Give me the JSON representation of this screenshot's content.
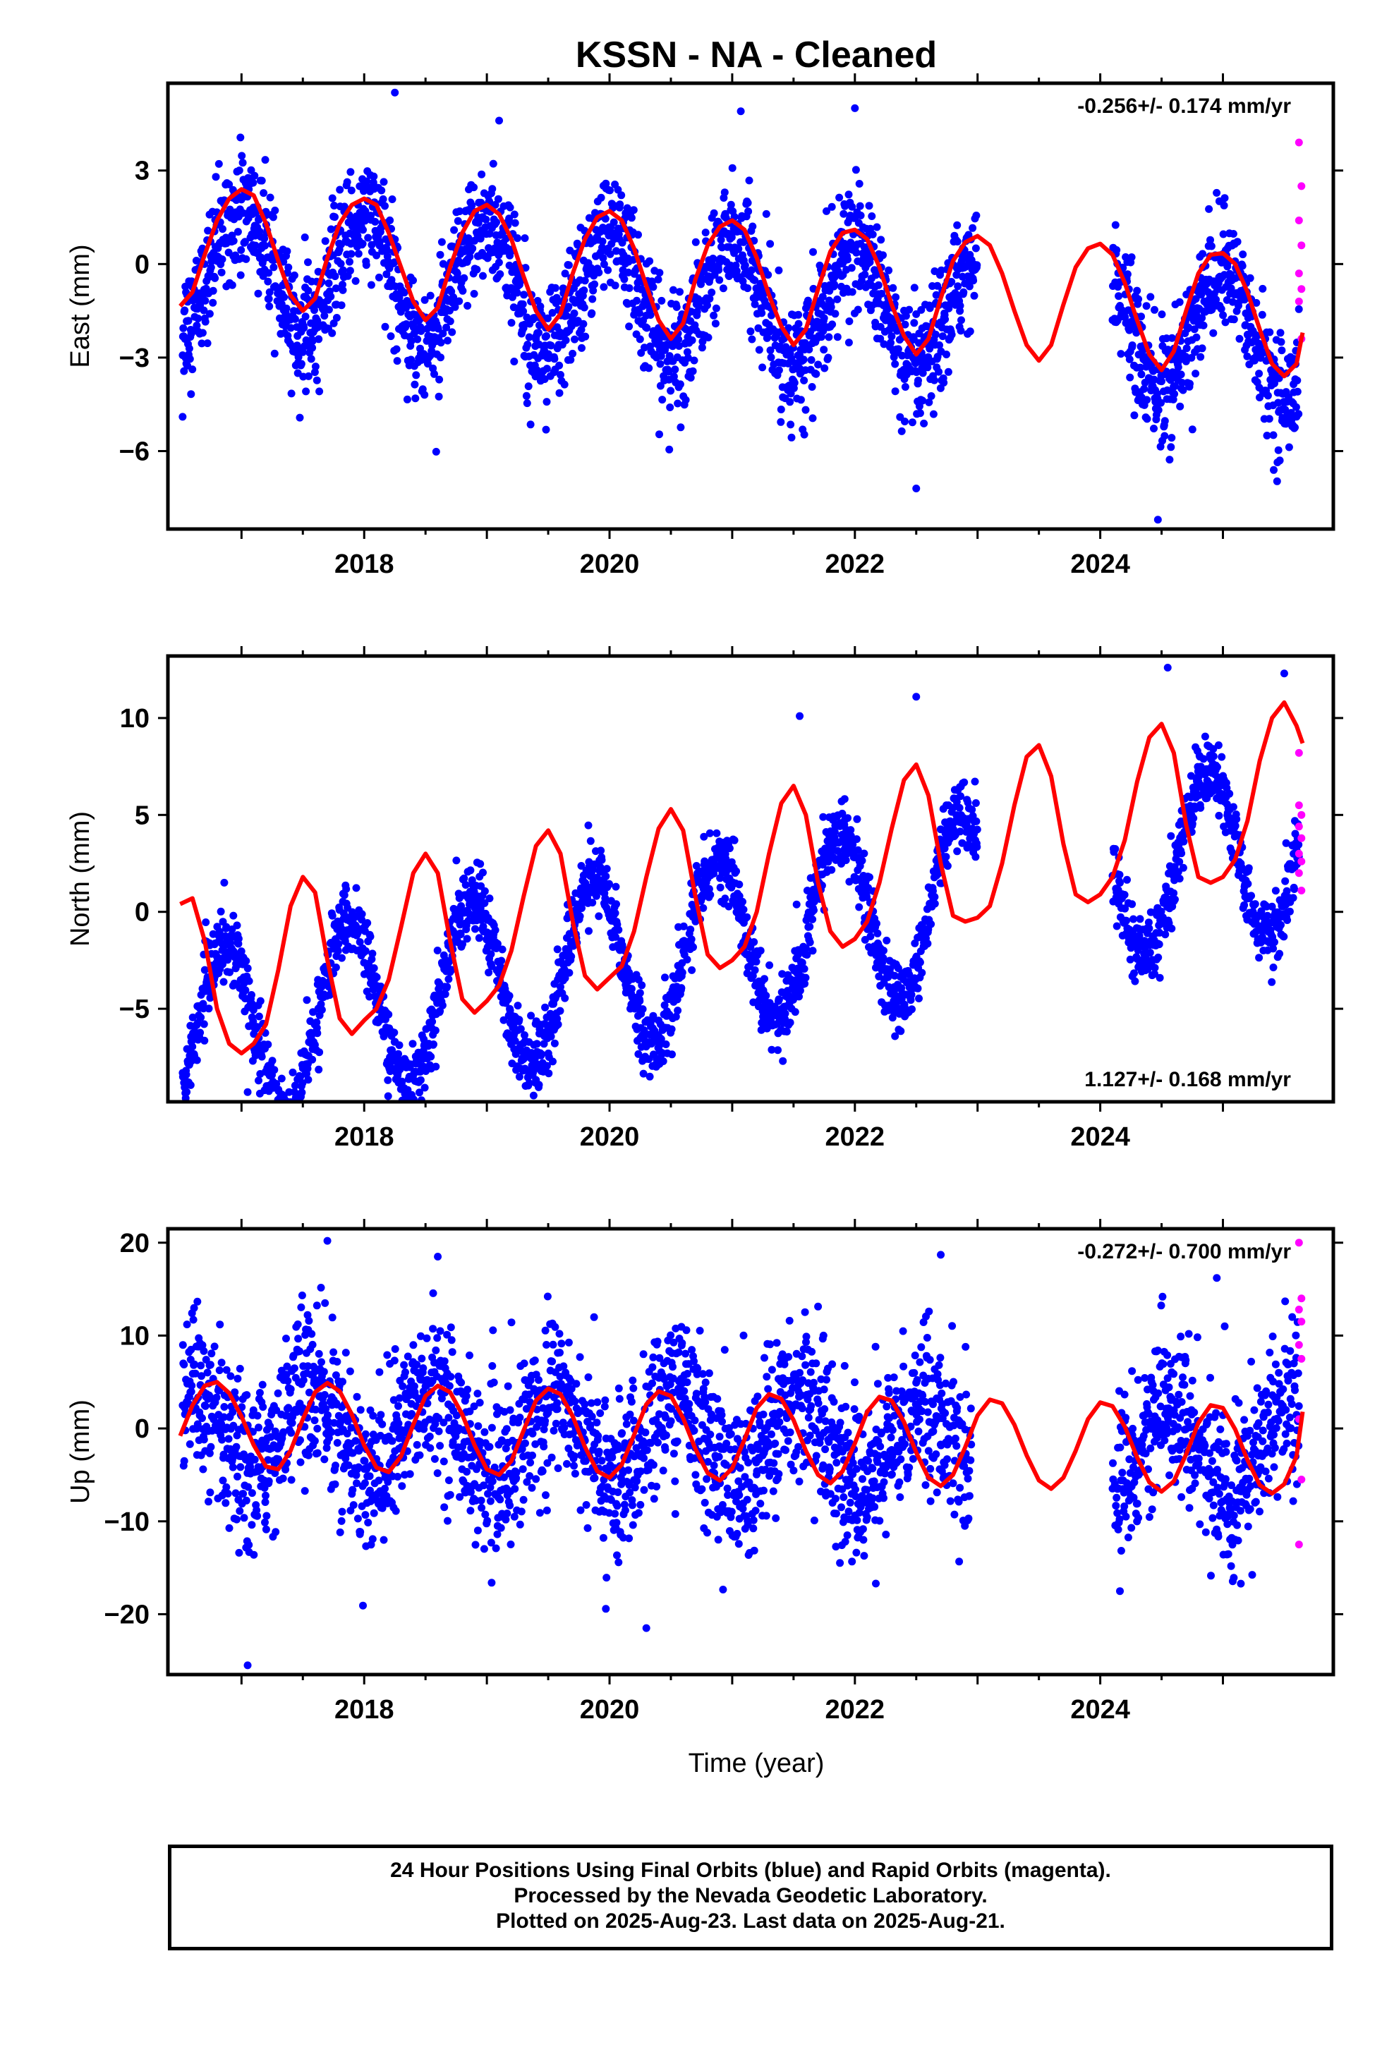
{
  "title": "KSSN  - NA - Cleaned",
  "xlabel": "Time (year)",
  "footer": {
    "line1": "24 Hour Positions Using Final Orbits (blue) and Rapid Orbits (magenta).",
    "line2": "Processed by the Nevada Geodetic Laboratory.",
    "line3": "Plotted on 2025-Aug-23. Last data on 2025-Aug-21."
  },
  "colors": {
    "final": "#0000ff",
    "rapid": "#ff00ff",
    "model": "#ff0000",
    "frame": "#000000"
  },
  "chart_data": [
    {
      "type": "scatter",
      "name": "east",
      "ylabel": "East (mm)",
      "rate_text": "-0.256+/- 0.174 mm/yr",
      "rate_position": "top-right",
      "xlim": [
        2016.4,
        2025.9
      ],
      "ylim": [
        -8.5,
        5.8
      ],
      "yticks": [
        -6,
        -3,
        0,
        3
      ],
      "xticks": [
        2018,
        2020,
        2022,
        2024
      ],
      "rate": -0.256,
      "offset": 0.0,
      "annual_amp": 1.95,
      "annual_phase": 2017.0,
      "noise_sd": 0.95,
      "final_ranges": [
        [
          2016.52,
          2023.0
        ],
        [
          2024.1,
          2025.62
        ]
      ],
      "rapid_range": [
        2025.62,
        2025.64
      ],
      "rapid_values": [
        3.9,
        2.5,
        1.4,
        0.6,
        -0.3,
        -0.8,
        -1.2,
        -2.4
      ],
      "fit_x": [
        2016.5,
        2016.6,
        2016.7,
        2016.8,
        2016.9,
        2017.0,
        2017.1,
        2017.2,
        2017.3,
        2017.4,
        2017.5,
        2017.6,
        2017.7,
        2017.8,
        2017.9,
        2018.0,
        2018.1,
        2018.2,
        2018.3,
        2018.4,
        2018.5,
        2018.6,
        2018.7,
        2018.8,
        2018.9,
        2019.0,
        2019.1,
        2019.2,
        2019.3,
        2019.4,
        2019.5,
        2019.6,
        2019.7,
        2019.8,
        2019.9,
        2020.0,
        2020.1,
        2020.2,
        2020.3,
        2020.4,
        2020.5,
        2020.6,
        2020.7,
        2020.8,
        2020.9,
        2021.0,
        2021.1,
        2021.2,
        2021.3,
        2021.4,
        2021.5,
        2021.6,
        2021.7,
        2021.8,
        2021.9,
        2022.0,
        2022.1,
        2022.2,
        2022.3,
        2022.4,
        2022.5,
        2022.6,
        2022.7,
        2022.8,
        2022.9,
        2023.0,
        2023.1,
        2023.2,
        2023.3,
        2023.4,
        2023.5,
        2023.6,
        2023.7,
        2023.8,
        2023.9,
        2024.0,
        2024.1,
        2024.2,
        2024.3,
        2024.4,
        2024.5,
        2024.6,
        2024.7,
        2024.8,
        2024.9,
        2025.0,
        2025.1,
        2025.2,
        2025.3,
        2025.4,
        2025.5,
        2025.6
      ],
      "fit_y": [
        -1.35,
        -0.9,
        0.3,
        1.4,
        2.1,
        2.4,
        2.2,
        1.3,
        0.1,
        -1.0,
        -1.5,
        -1.1,
        0.2,
        1.3,
        1.9,
        2.1,
        1.9,
        1.0,
        -0.1,
        -1.2,
        -1.8,
        -1.4,
        -0.1,
        1.0,
        1.7,
        1.9,
        1.6,
        0.8,
        -0.4,
        -1.5,
        -2.1,
        -1.6,
        -0.3,
        0.8,
        1.5,
        1.7,
        1.4,
        0.5,
        -0.7,
        -1.8,
        -2.4,
        -1.9,
        -0.5,
        0.6,
        1.2,
        1.4,
        1.1,
        0.2,
        -1.0,
        -2.0,
        -2.6,
        -2.1,
        -0.8,
        0.4,
        1.0,
        1.1,
        0.8,
        -0.1,
        -1.3,
        -2.3,
        -2.9,
        -2.4,
        -1.1,
        0.1,
        0.7,
        0.9,
        0.6,
        -0.3,
        -1.5,
        -2.6,
        -3.1,
        -2.6,
        -1.3,
        -0.1,
        0.5,
        0.65,
        0.3,
        -0.6,
        -1.8,
        -2.9,
        -3.4,
        -2.8,
        -1.5,
        -0.3,
        0.3,
        0.35,
        0.0,
        -0.9,
        -2.1,
        -3.2,
        -3.6,
        -3.2
      ],
      "fit_end": [
        [
          2025.6,
          -3.2
        ],
        [
          2025.65,
          -2.2
        ]
      ],
      "sample_points": [
        [
          2016.52,
          -4.9
        ],
        [
          2018.25,
          5.5
        ],
        [
          2021.07,
          4.9
        ],
        [
          2022.5,
          -7.2
        ],
        [
          2024.47,
          -8.2
        ],
        [
          2022.0,
          5.0
        ],
        [
          2019.1,
          4.6
        ]
      ]
    },
    {
      "type": "scatter",
      "name": "north",
      "ylabel": "North (mm)",
      "rate_text": "1.127+/- 0.168 mm/yr",
      "rate_position": "bottom-right",
      "xlim": [
        2016.4,
        2025.9
      ],
      "ylim": [
        -9.8,
        13.2
      ],
      "yticks": [
        -5,
        0,
        5,
        10
      ],
      "xticks": [
        2018,
        2020,
        2022,
        2024
      ],
      "rate": 1.127,
      "offset": -6.6,
      "annual_amp": 4.5,
      "annual_phase": 2016.87,
      "noise_sd": 0.9,
      "final_ranges": [
        [
          2016.52,
          2023.0
        ],
        [
          2024.1,
          2025.62
        ]
      ],
      "rapid_range": [
        2025.62,
        2025.64
      ],
      "rapid_values": [
        5.5,
        5.0,
        4.4,
        3.8,
        3.0,
        2.6,
        2.0,
        1.1,
        8.2
      ],
      "fit_x": [
        2016.5,
        2016.6,
        2016.7,
        2016.8,
        2016.9,
        2017.0,
        2017.1,
        2017.2,
        2017.3,
        2017.4,
        2017.5,
        2017.6,
        2017.7,
        2017.8,
        2017.9,
        2018.0,
        2018.1,
        2018.2,
        2018.3,
        2018.4,
        2018.5,
        2018.6,
        2018.7,
        2018.8,
        2018.9,
        2019.0,
        2019.1,
        2019.2,
        2019.3,
        2019.4,
        2019.5,
        2019.6,
        2019.7,
        2019.8,
        2019.9,
        2020.0,
        2020.1,
        2020.2,
        2020.3,
        2020.4,
        2020.5,
        2020.6,
        2020.7,
        2020.8,
        2020.9,
        2021.0,
        2021.1,
        2021.2,
        2021.3,
        2021.4,
        2021.5,
        2021.6,
        2021.7,
        2021.8,
        2021.9,
        2022.0,
        2022.1,
        2022.2,
        2022.3,
        2022.4,
        2022.5,
        2022.6,
        2022.7,
        2022.8,
        2022.9,
        2023.0,
        2023.1,
        2023.2,
        2023.3,
        2023.4,
        2023.5,
        2023.6,
        2023.7,
        2023.8,
        2023.9,
        2024.0,
        2024.1,
        2024.2,
        2024.3,
        2024.4,
        2024.5,
        2024.6,
        2024.7,
        2024.8,
        2024.9,
        2025.0,
        2025.1,
        2025.2,
        2025.3,
        2025.4,
        2025.5,
        2025.6
      ],
      "fit_y": [
        0.4,
        0.7,
        -1.5,
        -5.0,
        -6.8,
        -7.3,
        -6.8,
        -5.8,
        -3.0,
        0.3,
        1.8,
        1.0,
        -2.5,
        -5.5,
        -6.3,
        -5.6,
        -5.0,
        -3.5,
        -0.8,
        2.0,
        3.0,
        2.0,
        -1.5,
        -4.5,
        -5.2,
        -4.6,
        -3.8,
        -2.0,
        0.8,
        3.4,
        4.2,
        3.0,
        -0.5,
        -3.3,
        -4.0,
        -3.4,
        -2.8,
        -1.0,
        1.8,
        4.3,
        5.3,
        4.2,
        0.8,
        -2.2,
        -2.9,
        -2.5,
        -1.8,
        0.0,
        3.0,
        5.6,
        6.5,
        5.0,
        1.5,
        -1.0,
        -1.8,
        -1.4,
        -0.5,
        1.5,
        4.3,
        6.8,
        7.6,
        6.0,
        2.5,
        -0.2,
        -0.5,
        -0.3,
        0.3,
        2.5,
        5.5,
        8.0,
        8.6,
        7.0,
        3.5,
        0.9,
        0.5,
        0.9,
        1.8,
        3.7,
        6.7,
        9.0,
        9.7,
        8.2,
        4.5,
        1.8,
        1.5,
        1.8,
        2.7,
        4.7,
        7.8,
        10.0,
        10.8,
        9.6
      ],
      "fit_end": [
        [
          2025.6,
          9.6
        ],
        [
          2025.65,
          8.7
        ]
      ],
      "sample_points": [
        [
          2024.55,
          12.6
        ],
        [
          2025.5,
          12.3
        ],
        [
          2017.05,
          -9.3
        ],
        [
          2022.5,
          11.1
        ],
        [
          2021.55,
          10.1
        ]
      ]
    },
    {
      "type": "scatter",
      "name": "up",
      "ylabel": "Up (mm)",
      "rate_text": "-0.272+/- 0.700 mm/yr",
      "rate_position": "top-right",
      "xlim": [
        2016.4,
        2025.9
      ],
      "ylim": [
        -26.5,
        21.5
      ],
      "yticks": [
        -20,
        -10,
        0,
        10,
        20
      ],
      "xticks": [
        2018,
        2020,
        2022,
        2024
      ],
      "rate": -0.272,
      "offset": 0.0,
      "annual_amp": 4.8,
      "annual_phase": 2016.55,
      "noise_sd": 4.2,
      "final_ranges": [
        [
          2016.52,
          2022.95
        ],
        [
          2024.1,
          2025.62
        ]
      ],
      "rapid_range": [
        2025.62,
        2025.64
      ],
      "rapid_values": [
        20.0,
        14.0,
        12.8,
        11.5,
        9.0,
        7.5,
        1.0,
        -5.5,
        -12.5
      ],
      "fit_x": [
        2016.5,
        2016.6,
        2016.7,
        2016.8,
        2016.9,
        2017.0,
        2017.1,
        2017.2,
        2017.3,
        2017.4,
        2017.5,
        2017.6,
        2017.7,
        2017.8,
        2017.9,
        2018.0,
        2018.1,
        2018.2,
        2018.3,
        2018.4,
        2018.5,
        2018.6,
        2018.7,
        2018.8,
        2018.9,
        2019.0,
        2019.1,
        2019.2,
        2019.3,
        2019.4,
        2019.5,
        2019.6,
        2019.7,
        2019.8,
        2019.9,
        2020.0,
        2020.1,
        2020.2,
        2020.3,
        2020.4,
        2020.5,
        2020.6,
        2020.7,
        2020.8,
        2020.9,
        2021.0,
        2021.1,
        2021.2,
        2021.3,
        2021.4,
        2021.5,
        2021.6,
        2021.7,
        2021.8,
        2021.9,
        2022.0,
        2022.1,
        2022.2,
        2022.3,
        2022.4,
        2022.5,
        2022.6,
        2022.7,
        2022.8,
        2022.9,
        2023.0,
        2023.1,
        2023.2,
        2023.3,
        2023.4,
        2023.5,
        2023.6,
        2023.7,
        2023.8,
        2023.9,
        2024.0,
        2024.1,
        2024.2,
        2024.3,
        2024.4,
        2024.5,
        2024.6,
        2024.7,
        2024.8,
        2024.9,
        2025.0,
        2025.1,
        2025.2,
        2025.3,
        2025.4,
        2025.5,
        2025.6
      ],
      "fit_y": [
        -0.8,
        2.5,
        4.6,
        5.0,
        3.8,
        1.3,
        -1.8,
        -4.1,
        -4.4,
        -2.4,
        1.0,
        3.9,
        4.9,
        4.0,
        1.5,
        -1.8,
        -4.2,
        -4.7,
        -3.0,
        0.4,
        3.5,
        4.6,
        3.9,
        1.5,
        -1.8,
        -4.4,
        -5.0,
        -3.5,
        -0.2,
        3.0,
        4.3,
        3.7,
        1.3,
        -2.0,
        -4.6,
        -5.3,
        -3.9,
        -0.7,
        2.6,
        4.0,
        3.5,
        1.1,
        -2.2,
        -4.8,
        -5.6,
        -4.3,
        -1.2,
        2.2,
        3.7,
        3.2,
        0.9,
        -2.4,
        -5.0,
        -5.9,
        -4.6,
        -1.6,
        1.8,
        3.4,
        3.0,
        0.7,
        -2.6,
        -5.3,
        -6.2,
        -5.0,
        -2.0,
        1.4,
        3.1,
        2.7,
        0.4,
        -2.9,
        -5.6,
        -6.5,
        -5.3,
        -2.4,
        1.0,
        2.8,
        2.4,
        0.2,
        -3.1,
        -5.8,
        -6.8,
        -5.7,
        -2.8,
        0.6,
        2.5,
        2.2,
        -0.1,
        -3.4,
        -6.1,
        -7.0,
        -6.0,
        -3.0
      ],
      "fit_end": [
        [
          2025.6,
          -3.0
        ],
        [
          2025.65,
          1.8
        ]
      ],
      "sample_points": [
        [
          2017.05,
          -25.5
        ],
        [
          2017.7,
          20.2
        ],
        [
          2018.6,
          18.5
        ],
        [
          2020.3,
          -21.5
        ],
        [
          2024.95,
          16.2
        ],
        [
          2022.7,
          18.7
        ]
      ]
    }
  ]
}
